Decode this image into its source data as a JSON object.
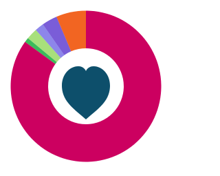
{
  "chart_data": {
    "type": "donut",
    "values": [
      85,
      1,
      2.4,
      1.9,
      3.3,
      6.4
    ],
    "colors": [
      "#cc0060",
      "#3dba5b",
      "#a8e07c",
      "#8d86ea",
      "#7a5dd8",
      "#f26522"
    ]
  }
}
